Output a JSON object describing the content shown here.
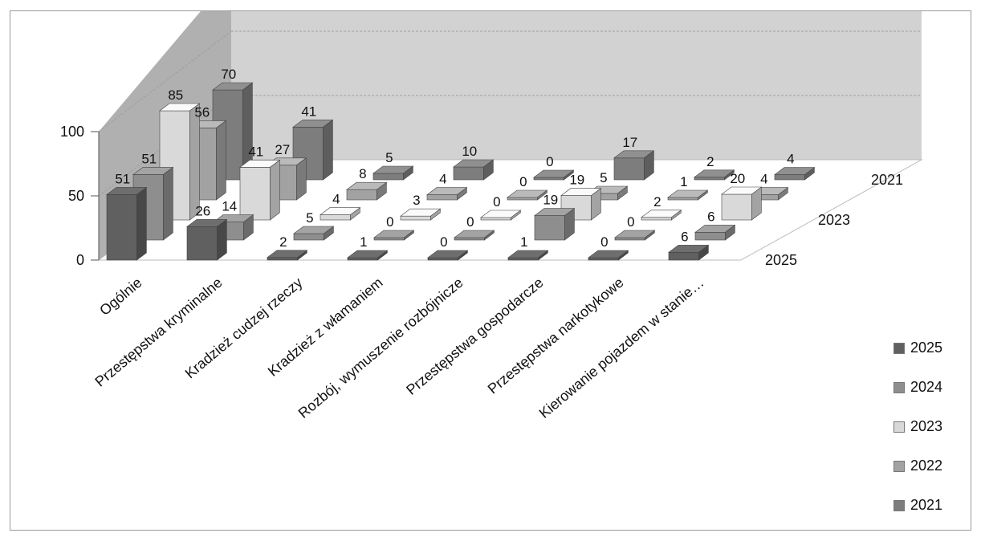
{
  "colors": {
    "series": [
      "#606060",
      "#8e8e8e",
      "#d9d9d9",
      "#a2a2a2",
      "#7d7d7d"
    ],
    "wall_back": "#d2d2d2",
    "wall_side": "#b0b0b0",
    "floor": "#ffffff"
  },
  "chart_data": {
    "type": "bar",
    "subtype": "3d-column",
    "title": "",
    "categories": [
      "Ogólnie",
      "Przestępstwa kryminalne",
      "Kradzież cudzej rzeczy",
      "Kradzież z włamaniem",
      "Rozbój, wymuszenie rozbójnicze",
      "Przestępstwa gospodarcze",
      "Przestępstwa narkotykowe",
      "Kierowanie pojazdem w stanie…"
    ],
    "series": [
      {
        "name": "2025",
        "values": [
          51,
          26,
          2,
          1,
          0,
          1,
          0,
          6
        ]
      },
      {
        "name": "2024",
        "values": [
          51,
          14,
          5,
          0,
          0,
          19,
          0,
          6
        ]
      },
      {
        "name": "2023",
        "values": [
          85,
          41,
          4,
          3,
          0,
          19,
          2,
          20
        ]
      },
      {
        "name": "2022",
        "values": [
          56,
          27,
          8,
          4,
          0,
          5,
          1,
          4
        ]
      },
      {
        "name": "2021",
        "values": [
          70,
          41,
          5,
          10,
          0,
          17,
          2,
          4
        ]
      }
    ],
    "value_axis": {
      "min": 0,
      "max": 100,
      "ticks": [
        "0",
        "50",
        "100"
      ]
    },
    "depth_axis_labels": [
      "2021",
      "2023",
      "2025"
    ],
    "legend_position": "right",
    "gridlines": true
  }
}
